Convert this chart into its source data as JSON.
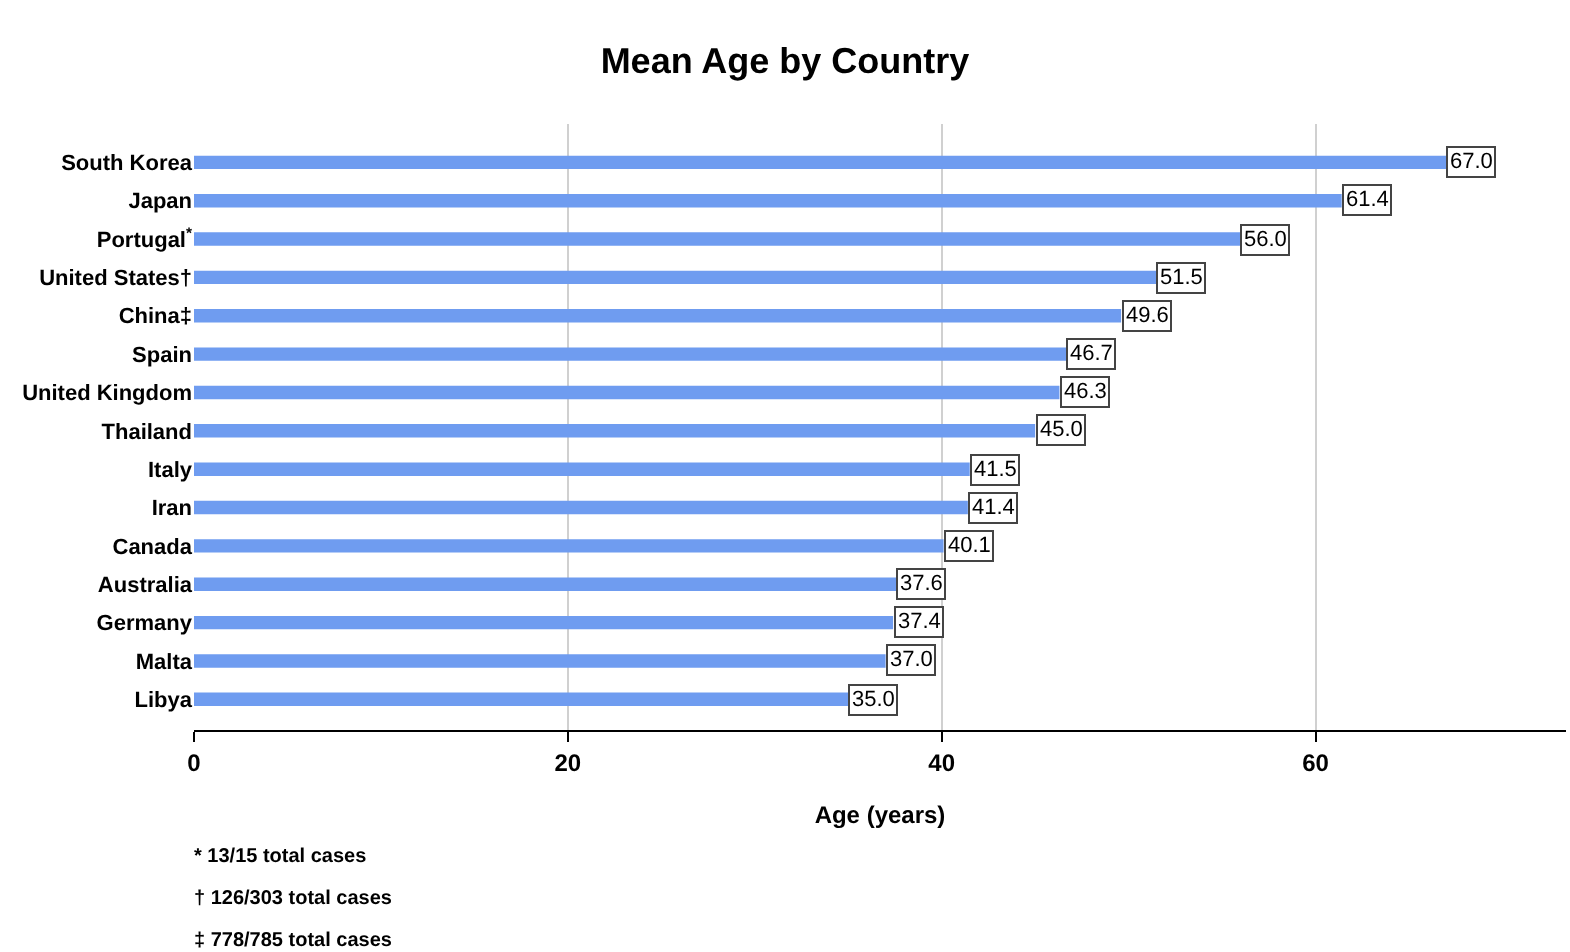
{
  "chart_data": {
    "type": "bar",
    "orientation": "horizontal",
    "title": "Mean Age by Country",
    "xlabel": "Age (years)",
    "categories": [
      "South Korea",
      "Japan",
      "Portugal$^{*}$",
      "United States†",
      "China‡",
      "Spain",
      "United Kingdom",
      "Thailand",
      "Italy",
      "Iran",
      "Canada",
      "Australia",
      "Germany",
      "Malta",
      "Libya"
    ],
    "values": [
      67.0,
      61.4,
      56.0,
      51.5,
      49.6,
      46.7,
      46.3,
      45.0,
      41.5,
      41.4,
      40.1,
      37.6,
      37.4,
      37.0,
      35.0
    ],
    "color": "#6f9cf0",
    "xlim": [
      0,
      73.4
    ],
    "xticks": [
      0,
      20,
      40,
      60
    ],
    "grid": "x",
    "value_labels": [
      "67.0",
      "61.4",
      "56.0",
      "51.5",
      "49.6",
      "46.7",
      "46.3",
      "45.0",
      "41.5",
      "41.4",
      "40.1",
      "37.6",
      "37.4",
      "37.0",
      "35.0"
    ],
    "legend": false,
    "annotations": [
      "* 13/15 total cases",
      "† 126/303 total cases",
      "‡ 778/785 total cases"
    ]
  }
}
